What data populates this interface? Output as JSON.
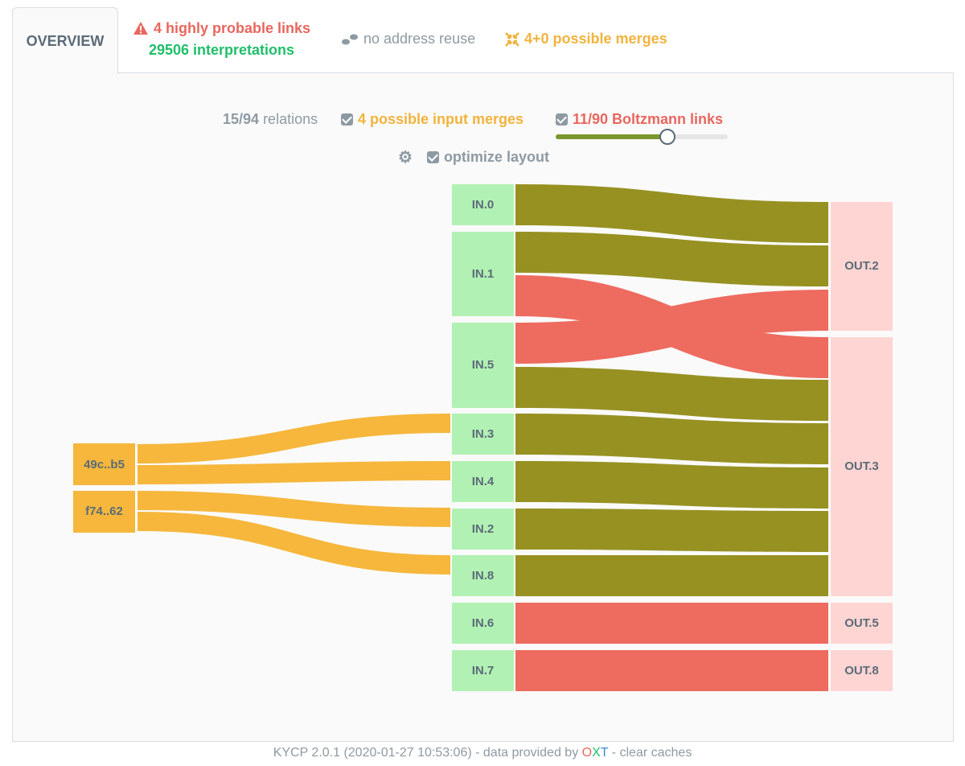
{
  "tabs": {
    "overview": "OVERVIEW",
    "links_line1": "4 highly probable links",
    "links_line2": "29506 interpretations",
    "address_reuse": "no address reuse",
    "merges": "4+0 possible merges"
  },
  "controls": {
    "relations_count": "15/94",
    "relations_label": "relations",
    "input_merges": "4 possible input merges",
    "boltzmann": "11/90 Boltzmann links",
    "boltzmann_slider_value": 0.65,
    "optimize_layout": "optimize layout"
  },
  "graph": {
    "clusters": [
      "49c..b5",
      "f74..62"
    ],
    "inputs": [
      "IN.0",
      "IN.1",
      "IN.5",
      "IN.3",
      "IN.4",
      "IN.2",
      "IN.8",
      "IN.6",
      "IN.7"
    ],
    "outputs": [
      "OUT.2",
      "OUT.3",
      "OUT.5",
      "OUT.8"
    ]
  },
  "footer": {
    "version": "KYCP 2.0.1 (2020-01-27 10:53:06) - data provided by",
    "oxt_o": "O",
    "oxt_x": "X",
    "oxt_t": "T",
    "clear": "- clear caches"
  },
  "colors": {
    "link_probable": "#979122",
    "link_boltzmann": "#ee6b5f",
    "merge": "#f6b73c",
    "input_node": "#b2f1b4",
    "output_node": "#ffd5d3"
  }
}
